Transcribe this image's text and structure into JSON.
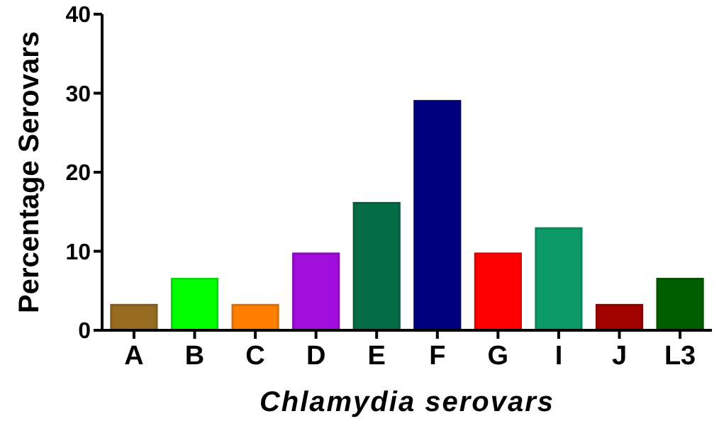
{
  "chart_data": {
    "type": "bar",
    "xlabel": "Chlamydia serovars",
    "ylabel": "Percentage Serovars",
    "categories": [
      "A",
      "B",
      "C",
      "D",
      "E",
      "F",
      "G",
      "I",
      "J",
      "L3"
    ],
    "values": [
      3.2,
      6.5,
      3.2,
      9.7,
      16.1,
      29.0,
      9.7,
      12.9,
      3.2,
      6.5
    ],
    "colors": [
      "#956b1f",
      "#00ff00",
      "#ff8000",
      "#a10ddb",
      "#066c45",
      "#00007f",
      "#ff0000",
      "#0b9a68",
      "#a00000",
      "#005e00"
    ],
    "ylim": [
      0,
      40
    ],
    "yticks": [
      0,
      10,
      20,
      30,
      40
    ],
    "grid": false
  }
}
